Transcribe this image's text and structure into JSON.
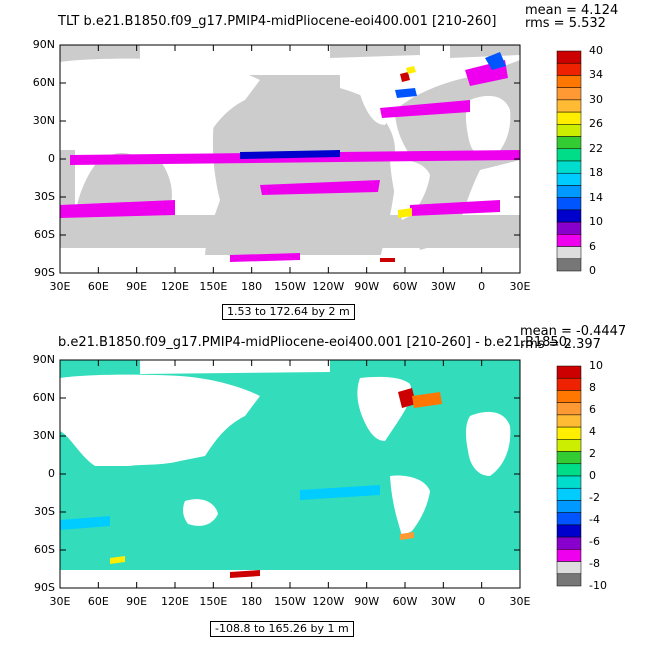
{
  "chart_data": [
    {
      "type": "heatmap",
      "title": "TLT b.e21.B1850.f09_g17.PMIP4-midPliocene-eoi400.001  [210-260]",
      "stats": [
        "mean = 4.124",
        "rms = 5.532"
      ],
      "range_label": "1.53 to 172.64 by 2 m",
      "x_ticks": [
        "30E",
        "60E",
        "90E",
        "120E",
        "150E",
        "180",
        "150W",
        "120W",
        "90W",
        "60W",
        "30W",
        "0",
        "30E"
      ],
      "y_ticks": [
        "90N",
        "60N",
        "30N",
        "0",
        "30S",
        "60S",
        "90S"
      ],
      "colorbar_labels": [
        "40",
        "34",
        "30",
        "26",
        "22",
        "18",
        "14",
        "10",
        "6",
        "0"
      ],
      "colorbar_colors": [
        "#cc0000",
        "#ee2200",
        "#ff7700",
        "#ff9933",
        "#ffbb33",
        "#ffee00",
        "#ccee00",
        "#33cc33",
        "#00dd88",
        "#00ddcc",
        "#00ccff",
        "#0099ff",
        "#0055ff",
        "#0000cc",
        "#8800cc",
        "#ee00ee",
        "#dddddd",
        "#777777"
      ],
      "land_color": "#ffffff",
      "ocean_color": "#cccccc"
    },
    {
      "type": "heatmap",
      "title": "b.e21.B1850.f09_g17.PMIP4-midPliocene-eoi400.001  [210-260]  - b.e21.B1850.",
      "stats": [
        "mean = -0.4447",
        "rms = 2.397"
      ],
      "range_label": "-108.8 to 165.26 by 1 m",
      "x_ticks": [
        "30E",
        "60E",
        "90E",
        "120E",
        "150E",
        "180",
        "150W",
        "120W",
        "90W",
        "60W",
        "30W",
        "0",
        "30E"
      ],
      "y_ticks": [
        "90N",
        "60N",
        "30N",
        "0",
        "30S",
        "60S",
        "90S"
      ],
      "colorbar_labels": [
        "10",
        "8",
        "6",
        "4",
        "2",
        "0",
        "-2",
        "-4",
        "-6",
        "-8",
        "-10"
      ],
      "colorbar_colors": [
        "#cc0000",
        "#ee2200",
        "#ff7700",
        "#ff9933",
        "#ffbb33",
        "#ffee00",
        "#ccee00",
        "#33cc33",
        "#00dd88",
        "#00ddcc",
        "#00ccff",
        "#0099ff",
        "#0055ff",
        "#0000cc",
        "#8800cc",
        "#ee00ee",
        "#dddddd",
        "#777777"
      ],
      "land_color": "#ffffff",
      "ocean_color": "#33ddbb"
    }
  ]
}
